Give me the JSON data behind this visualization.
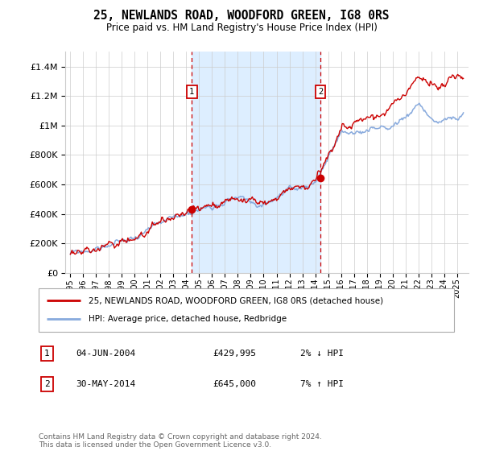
{
  "title": "25, NEWLANDS ROAD, WOODFORD GREEN, IG8 0RS",
  "subtitle": "Price paid vs. HM Land Registry's House Price Index (HPI)",
  "legend_line1": "25, NEWLANDS ROAD, WOODFORD GREEN, IG8 0RS (detached house)",
  "legend_line2": "HPI: Average price, detached house, Redbridge",
  "ann1_label": "1",
  "ann1_date": "04-JUN-2004",
  "ann1_price": "£429,995",
  "ann1_hpi": "2% ↓ HPI",
  "ann1_x": 2004.43,
  "ann1_y": 429995,
  "ann2_label": "2",
  "ann2_date": "30-MAY-2014",
  "ann2_price": "£645,000",
  "ann2_hpi": "7% ↑ HPI",
  "ann2_x": 2014.41,
  "ann2_y": 645000,
  "footer": "Contains HM Land Registry data © Crown copyright and database right 2024.\nThis data is licensed under the Open Government Licence v3.0.",
  "ylim": [
    0,
    1500000
  ],
  "yticks": [
    0,
    200000,
    400000,
    600000,
    800000,
    1000000,
    1200000,
    1400000
  ],
  "price_color": "#cc0000",
  "hpi_color": "#88aadd",
  "shaded_color": "#ddeeff",
  "grid_color": "#cccccc",
  "ann_box_color": "#cc0000",
  "bg_color": "#ffffff",
  "xstart": 1995,
  "xend": 2025,
  "xmin": 1994.6,
  "xmax": 2025.9
}
